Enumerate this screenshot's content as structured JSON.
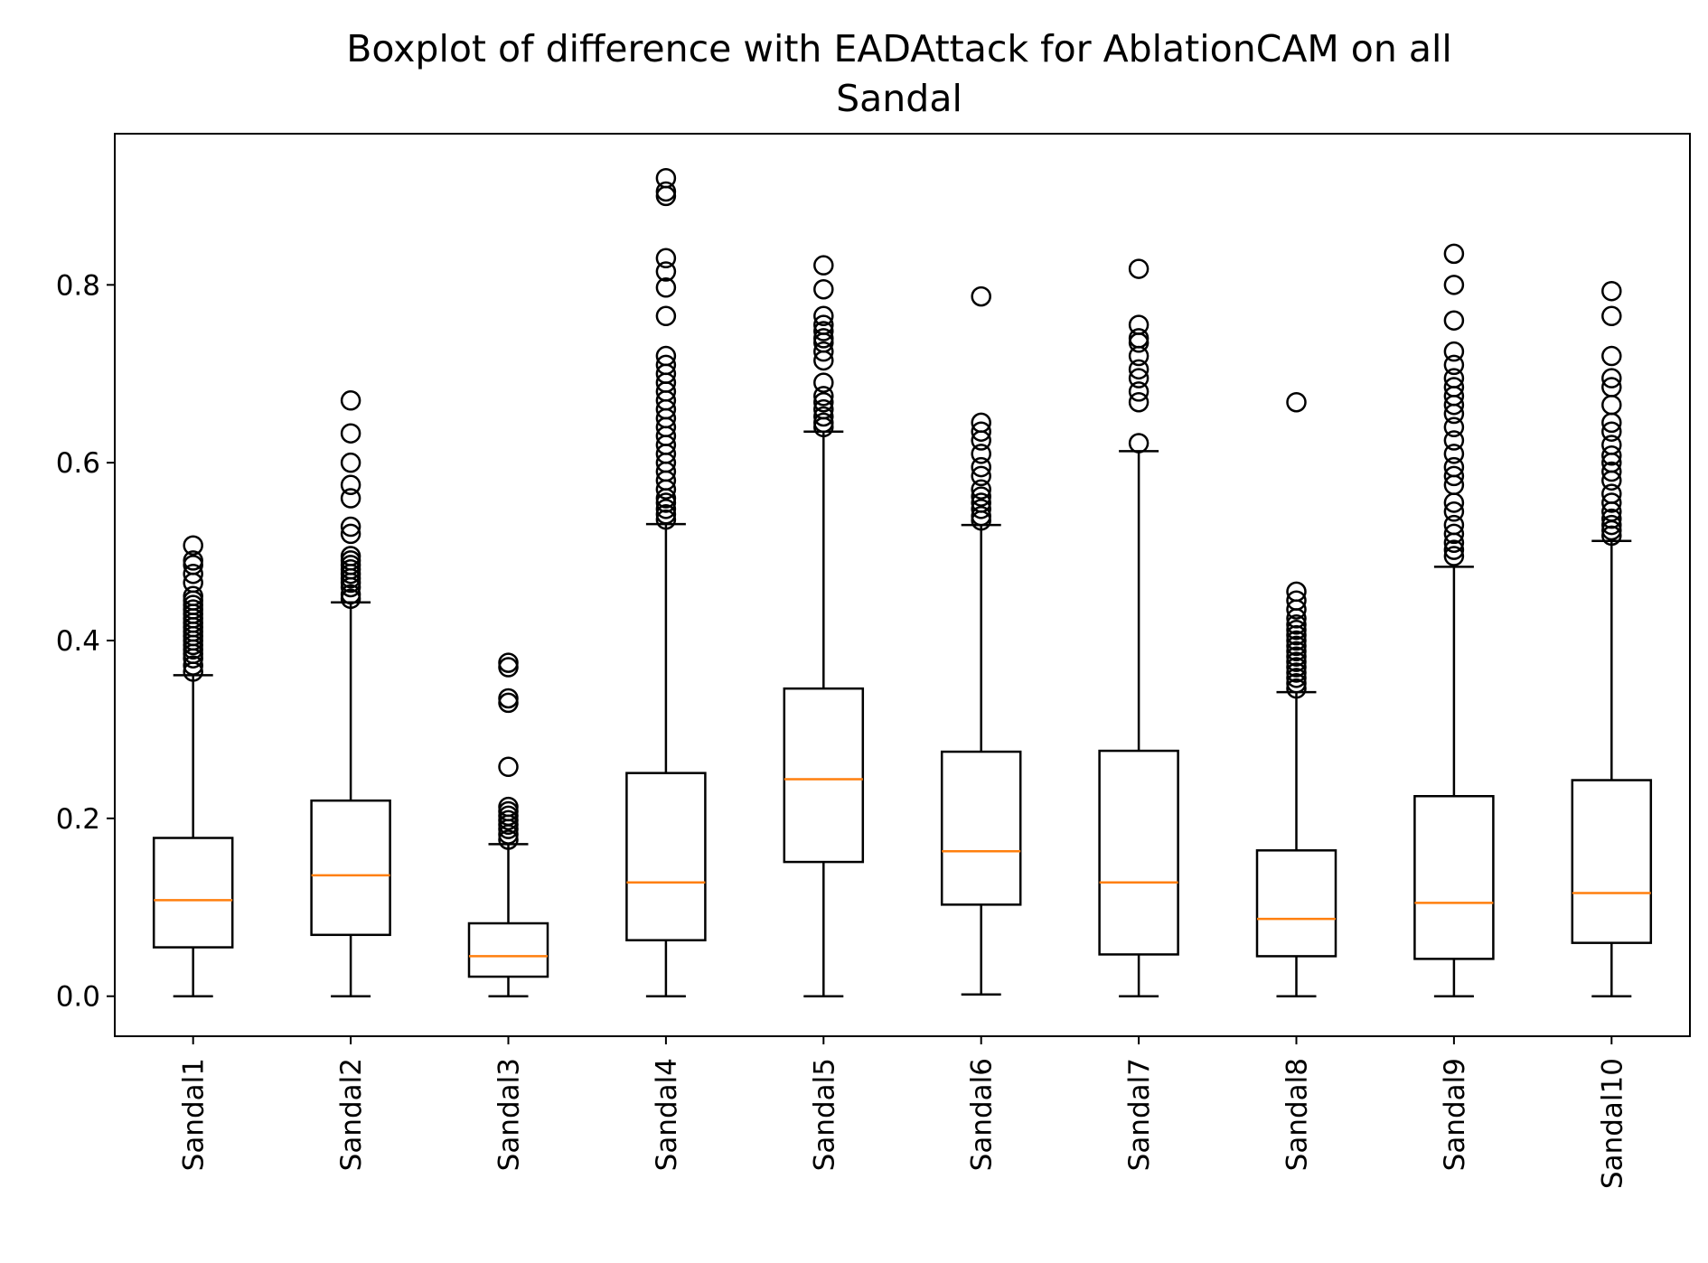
{
  "chart_data": {
    "type": "boxplot",
    "title": "Boxplot of difference with EADAttack for AblationCAM on all",
    "subtitle": "Sandal",
    "xlabel": "",
    "ylabel": "",
    "ylim": [
      -0.045,
      0.97
    ],
    "yticks": [
      0.0,
      0.2,
      0.4,
      0.6,
      0.8
    ],
    "ytick_labels": [
      "0.0",
      "0.2",
      "0.4",
      "0.6",
      "0.8"
    ],
    "grid": false,
    "colors": {
      "box": "#000000",
      "median": "#ff7f0e",
      "flier": "#000000"
    },
    "categories": [
      "Sandal1",
      "Sandal2",
      "Sandal3",
      "Sandal4",
      "Sandal5",
      "Sandal6",
      "Sandal7",
      "Sandal8",
      "Sandal9",
      "Sandal10"
    ],
    "boxes": [
      {
        "name": "Sandal1",
        "whislo": 0.0,
        "q1": 0.055,
        "med": 0.108,
        "q3": 0.178,
        "whishi": 0.361,
        "fliers": [
          0.365,
          0.372,
          0.38,
          0.385,
          0.39,
          0.395,
          0.4,
          0.405,
          0.41,
          0.415,
          0.42,
          0.425,
          0.43,
          0.435,
          0.44,
          0.445,
          0.45,
          0.465,
          0.475,
          0.485,
          0.49,
          0.507
        ]
      },
      {
        "name": "Sandal2",
        "whislo": 0.0,
        "q1": 0.069,
        "med": 0.136,
        "q3": 0.22,
        "whishi": 0.443,
        "fliers": [
          0.447,
          0.452,
          0.46,
          0.465,
          0.47,
          0.475,
          0.48,
          0.485,
          0.49,
          0.495,
          0.52,
          0.528,
          0.56,
          0.575,
          0.6,
          0.633,
          0.67
        ]
      },
      {
        "name": "Sandal3",
        "whislo": 0.0,
        "q1": 0.022,
        "med": 0.045,
        "q3": 0.082,
        "whishi": 0.171,
        "fliers": [
          0.176,
          0.182,
          0.188,
          0.193,
          0.198,
          0.203,
          0.208,
          0.213,
          0.258,
          0.33,
          0.335,
          0.37,
          0.375
        ]
      },
      {
        "name": "Sandal4",
        "whislo": 0.0,
        "q1": 0.063,
        "med": 0.128,
        "q3": 0.251,
        "whishi": 0.531,
        "fliers": [
          0.536,
          0.542,
          0.548,
          0.555,
          0.56,
          0.57,
          0.58,
          0.59,
          0.6,
          0.61,
          0.62,
          0.63,
          0.64,
          0.65,
          0.66,
          0.67,
          0.68,
          0.69,
          0.7,
          0.71,
          0.72,
          0.765,
          0.797,
          0.815,
          0.83,
          0.9,
          0.905,
          0.92
        ]
      },
      {
        "name": "Sandal5",
        "whislo": 0.0,
        "q1": 0.151,
        "med": 0.244,
        "q3": 0.346,
        "whishi": 0.635,
        "fliers": [
          0.64,
          0.645,
          0.652,
          0.66,
          0.668,
          0.675,
          0.69,
          0.715,
          0.725,
          0.735,
          0.74,
          0.748,
          0.755,
          0.765,
          0.795,
          0.822
        ]
      },
      {
        "name": "Sandal6",
        "whislo": 0.002,
        "q1": 0.103,
        "med": 0.163,
        "q3": 0.275,
        "whishi": 0.53,
        "fliers": [
          0.535,
          0.54,
          0.548,
          0.555,
          0.562,
          0.57,
          0.585,
          0.595,
          0.61,
          0.625,
          0.635,
          0.645,
          0.787
        ]
      },
      {
        "name": "Sandal7",
        "whislo": 0.0,
        "q1": 0.047,
        "med": 0.128,
        "q3": 0.276,
        "whishi": 0.613,
        "fliers": [
          0.622,
          0.668,
          0.68,
          0.695,
          0.705,
          0.72,
          0.735,
          0.74,
          0.755,
          0.818
        ]
      },
      {
        "name": "Sandal8",
        "whislo": 0.0,
        "q1": 0.045,
        "med": 0.087,
        "q3": 0.164,
        "whishi": 0.342,
        "fliers": [
          0.346,
          0.352,
          0.358,
          0.364,
          0.37,
          0.376,
          0.382,
          0.388,
          0.394,
          0.4,
          0.406,
          0.412,
          0.418,
          0.425,
          0.435,
          0.445,
          0.455,
          0.668
        ]
      },
      {
        "name": "Sandal9",
        "whislo": 0.0,
        "q1": 0.042,
        "med": 0.105,
        "q3": 0.225,
        "whishi": 0.483,
        "fliers": [
          0.495,
          0.502,
          0.51,
          0.52,
          0.53,
          0.545,
          0.555,
          0.575,
          0.585,
          0.595,
          0.61,
          0.625,
          0.64,
          0.655,
          0.665,
          0.675,
          0.685,
          0.695,
          0.71,
          0.725,
          0.76,
          0.8,
          0.835
        ]
      },
      {
        "name": "Sandal10",
        "whislo": 0.0,
        "q1": 0.06,
        "med": 0.116,
        "q3": 0.243,
        "whishi": 0.512,
        "fliers": [
          0.518,
          0.524,
          0.53,
          0.537,
          0.545,
          0.555,
          0.565,
          0.58,
          0.59,
          0.6,
          0.608,
          0.62,
          0.635,
          0.645,
          0.665,
          0.685,
          0.695,
          0.72,
          0.765,
          0.793
        ]
      }
    ]
  }
}
